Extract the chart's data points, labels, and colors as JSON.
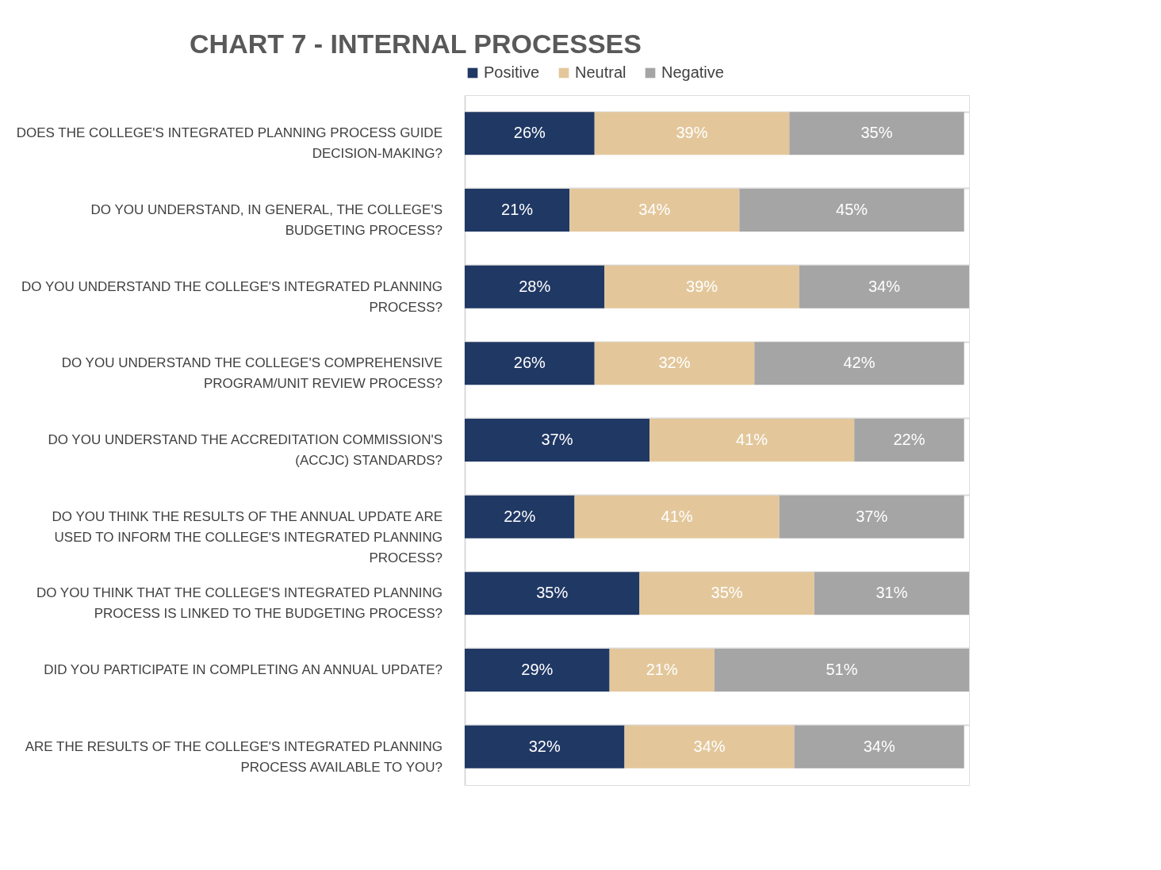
{
  "chart_data": {
    "type": "bar",
    "orientation": "horizontal",
    "stacked": true,
    "title": "CHART 7 - INTERNAL PROCESSES",
    "legend": "top",
    "grid": "y",
    "tick_labels": "y",
    "xlim": [
      0,
      101
    ],
    "categories": [
      "DOES THE COLLEGE'S INTEGRATED PLANNING PROCESS GUIDE DECISION-MAKING?",
      "DO YOU UNDERSTAND, IN GENERAL, THE COLLEGE'S BUDGETING PROCESS?",
      "DO YOU UNDERSTAND THE COLLEGE'S INTEGRATED PLANNING PROCESS?",
      "DO YOU UNDERSTAND THE COLLEGE'S COMPREHENSIVE PROGRAM/UNIT REVIEW PROCESS?",
      "DO YOU UNDERSTAND THE ACCREDITATION COMMISSION'S (ACCJC) STANDARDS?",
      "DO YOU THINK THE RESULTS OF THE ANNUAL UPDATE ARE USED TO INFORM THE COLLEGE'S INTEGRATED PLANNING PROCESS?",
      "DO YOU THINK THAT THE COLLEGE'S INTEGRATED PLANNING PROCESS IS LINKED TO THE BUDGETING PROCESS?",
      "DID YOU PARTICIPATE IN COMPLETING AN ANNUAL UPDATE?",
      "ARE THE RESULTS OF THE COLLEGE'S INTEGRATED PLANNING PROCESS AVAILABLE TO YOU?"
    ],
    "series": [
      {
        "name": "Positive",
        "color": "#203864",
        "values": [
          26,
          21,
          28,
          26,
          37,
          22,
          35,
          29,
          32
        ],
        "value_labels": [
          "26%",
          "21%",
          "28%",
          "26%",
          "37%",
          "22%",
          "35%",
          "29%",
          "32%"
        ]
      },
      {
        "name": "Neutral",
        "color": "#e3c79b",
        "values": [
          39,
          34,
          39,
          32,
          41,
          41,
          35,
          21,
          34
        ],
        "value_labels": [
          "39%",
          "34%",
          "39%",
          "32%",
          "41%",
          "41%",
          "35%",
          "21%",
          "34%"
        ]
      },
      {
        "name": "Negative",
        "color": "#a5a5a5",
        "values": [
          35,
          45,
          34,
          42,
          22,
          37,
          31,
          51,
          34
        ],
        "value_labels": [
          "35%",
          "45%",
          "34%",
          "42%",
          "22%",
          "37%",
          "31%",
          "51%",
          "34%"
        ]
      }
    ]
  }
}
